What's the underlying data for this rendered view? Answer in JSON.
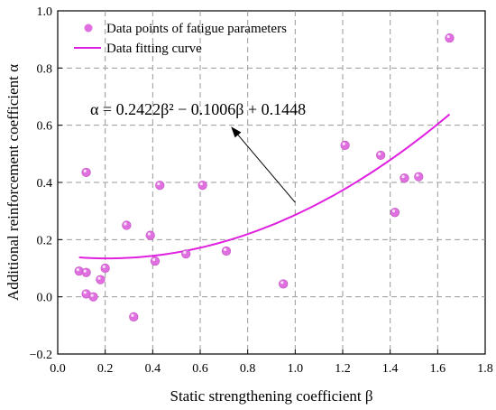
{
  "chart_data": {
    "type": "scatter",
    "xlabel": "Static strengthening coefficient β",
    "ylabel": "Additional reinforcement coefficient α",
    "xlim": [
      0.0,
      1.8
    ],
    "ylim": [
      -0.2,
      1.0
    ],
    "x_ticks": [
      "0.0",
      "0.2",
      "0.4",
      "0.6",
      "0.8",
      "1.0",
      "1.2",
      "1.4",
      "1.6",
      "1.8"
    ],
    "y_ticks": [
      "−0.2",
      "0.0",
      "0.2",
      "0.4",
      "0.6",
      "0.8",
      "1.0"
    ],
    "grid": true,
    "legend_position": "top-left",
    "series": [
      {
        "name": "Data points of fatigue parameters",
        "kind": "scatter",
        "color": "#e070e0",
        "points": [
          [
            0.09,
            0.09
          ],
          [
            0.12,
            0.435
          ],
          [
            0.12,
            0.085
          ],
          [
            0.12,
            0.01
          ],
          [
            0.15,
            0.0
          ],
          [
            0.18,
            0.06
          ],
          [
            0.2,
            0.1
          ],
          [
            0.29,
            0.25
          ],
          [
            0.32,
            -0.07
          ],
          [
            0.39,
            0.215
          ],
          [
            0.41,
            0.125
          ],
          [
            0.43,
            0.39
          ],
          [
            0.54,
            0.15
          ],
          [
            0.61,
            0.39
          ],
          [
            0.71,
            0.16
          ],
          [
            0.95,
            0.045
          ],
          [
            1.21,
            0.53
          ],
          [
            1.36,
            0.495
          ],
          [
            1.42,
            0.295
          ],
          [
            1.46,
            0.415
          ],
          [
            1.52,
            0.42
          ],
          [
            1.65,
            0.905
          ]
        ]
      },
      {
        "name": "Data fitting curve",
        "kind": "line",
        "color": "#e020e0",
        "coefficients": [
          0.2422,
          -0.1006,
          0.1448
        ],
        "x_range": [
          0.09,
          1.65
        ]
      }
    ],
    "annotation": {
      "text": "α = 0.2422β² − 0.1006β + 0.1448",
      "arrow_tail": [
        1.0,
        0.33
      ],
      "arrow_head": [
        0.73,
        0.595
      ]
    }
  }
}
